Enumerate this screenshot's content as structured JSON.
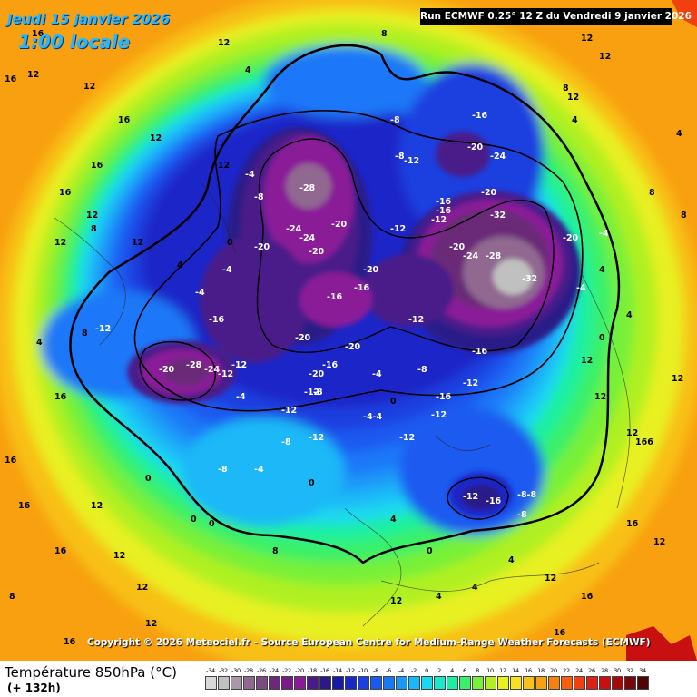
{
  "header": {
    "date": "Jeudi 15 janvier 2026",
    "time": "1:00 locale",
    "run": "Run ECMWF 0.25° 12 Z du Vendredi 9 janvier 2026"
  },
  "copyright": "Copyright © 2026 Meteociel.fr - Source European Centre for Medium-Range Weather Forecasts (ECMWF)",
  "footer": {
    "parameter": "Température 850hPa (°C)",
    "forecast_hour": "(+ 132h)"
  },
  "legend": [
    {
      "label": "-34",
      "color": "#d8d8d8"
    },
    {
      "label": "-32",
      "color": "#c0c0c0"
    },
    {
      "label": "-30",
      "color": "#a898a8"
    },
    {
      "label": "-28",
      "color": "#906890"
    },
    {
      "label": "-26",
      "color": "#7a4a80"
    },
    {
      "label": "-24",
      "color": "#6a2a78"
    },
    {
      "label": "-22",
      "color": "#7a1a88"
    },
    {
      "label": "-20",
      "color": "#8a1a98"
    },
    {
      "label": "-18",
      "color": "#4a1a8a"
    },
    {
      "label": "-16",
      "color": "#2a1a88"
    },
    {
      "label": "-14",
      "color": "#1a1aa8"
    },
    {
      "label": "-12",
      "color": "#1a28c8"
    },
    {
      "label": "-10",
      "color": "#1a40e0"
    },
    {
      "label": "-8",
      "color": "#1a5af0"
    },
    {
      "label": "-6",
      "color": "#1a78f8"
    },
    {
      "label": "-4",
      "color": "#1a98f8"
    },
    {
      "label": "-2",
      "color": "#1ab8f8"
    },
    {
      "label": "0",
      "color": "#1ad8f0"
    },
    {
      "label": "2",
      "color": "#1ae8c8"
    },
    {
      "label": "4",
      "color": "#1af0a0"
    },
    {
      "label": "6",
      "color": "#3af068"
    },
    {
      "label": "8",
      "color": "#78f038"
    },
    {
      "label": "10",
      "color": "#b0f020"
    },
    {
      "label": "12",
      "color": "#e8f020"
    },
    {
      "label": "14",
      "color": "#f8e020"
    },
    {
      "label": "16",
      "color": "#f8c018"
    },
    {
      "label": "18",
      "color": "#f8a010"
    },
    {
      "label": "20",
      "color": "#f88010"
    },
    {
      "label": "22",
      "color": "#f86010"
    },
    {
      "label": "24",
      "color": "#f04010"
    },
    {
      "label": "26",
      "color": "#e02010"
    },
    {
      "label": "28",
      "color": "#c81010"
    },
    {
      "label": "30",
      "color": "#a80808"
    },
    {
      "label": "32",
      "color": "#780808"
    },
    {
      "label": "34",
      "color": "#500404"
    }
  ],
  "map_labels": [
    {
      "text": "12",
      "kind": "warm"
    },
    {
      "text": "16",
      "kind": "warm"
    },
    {
      "text": "8",
      "kind": "warm"
    },
    {
      "text": "4",
      "kind": "warm"
    },
    {
      "text": "0",
      "kind": "mild"
    },
    {
      "text": "-4",
      "kind": "cold"
    },
    {
      "text": "-8",
      "kind": "cold"
    },
    {
      "text": "-12",
      "kind": "cold"
    },
    {
      "text": "-16",
      "kind": "cold"
    },
    {
      "text": "-20",
      "kind": "cold"
    },
    {
      "text": "-24",
      "kind": "cold"
    },
    {
      "text": "-28",
      "kind": "cold"
    },
    {
      "text": "-32",
      "kind": "cold"
    },
    {
      "text": "-8-8",
      "kind": "cold"
    },
    {
      "text": "-4-4",
      "kind": "cold"
    },
    {
      "text": "166",
      "kind": "warm"
    }
  ]
}
